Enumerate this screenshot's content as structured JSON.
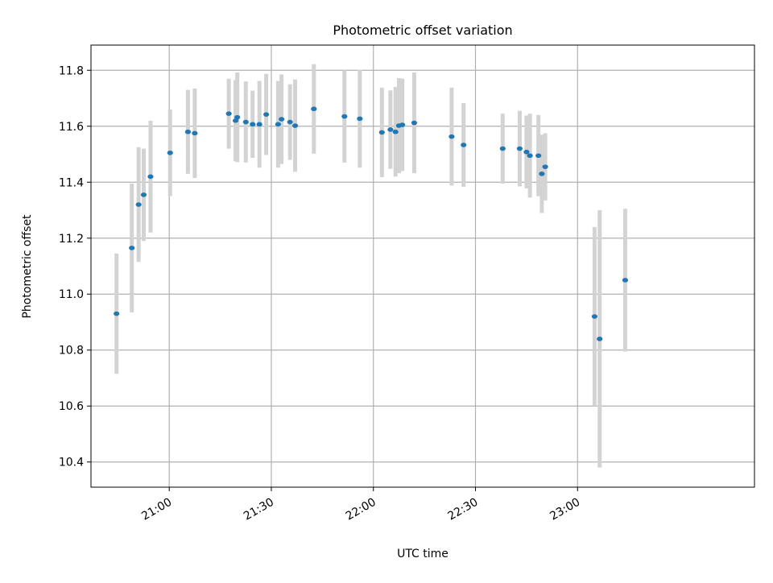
{
  "chart_data": {
    "type": "scatter",
    "title": "Photometric offset variation",
    "xlabel": "UTC time",
    "ylabel": "Photometric offset",
    "x_unit": "UTC time (HH:MM)",
    "xlim": [
      "20:37",
      "23:52"
    ],
    "ylim": [
      10.31,
      11.89
    ],
    "x_ticks": [
      "21:00",
      "21:30",
      "22:00",
      "22:30",
      "23:00"
    ],
    "y_ticks": [
      10.4,
      10.6,
      10.8,
      11.0,
      11.2,
      11.4,
      11.6,
      11.8
    ],
    "grid": true,
    "legend": "none",
    "colors": {
      "point": "#1f77b4",
      "errorbar": "#d3d3d3",
      "grid": "#b0b0b0"
    },
    "points": [
      {
        "t": "20:44:30",
        "y": 10.93,
        "yerr": 0.215
      },
      {
        "t": "20:49:00",
        "y": 11.165,
        "yerr": 0.23
      },
      {
        "t": "20:51:00",
        "y": 11.32,
        "yerr": 0.205
      },
      {
        "t": "20:52:30",
        "y": 11.355,
        "yerr": 0.165
      },
      {
        "t": "20:54:30",
        "y": 11.42,
        "yerr": 0.2
      },
      {
        "t": "21:00:15",
        "y": 11.505,
        "yerr": 0.155
      },
      {
        "t": "21:05:30",
        "y": 11.58,
        "yerr": 0.15
      },
      {
        "t": "21:07:30",
        "y": 11.575,
        "yerr": 0.16
      },
      {
        "t": "21:17:30",
        "y": 11.645,
        "yerr": 0.125
      },
      {
        "t": "21:19:30",
        "y": 11.62,
        "yerr": 0.145
      },
      {
        "t": "21:20:00",
        "y": 11.632,
        "yerr": 0.16
      },
      {
        "t": "21:22:30",
        "y": 11.615,
        "yerr": 0.145
      },
      {
        "t": "21:24:30",
        "y": 11.607,
        "yerr": 0.12
      },
      {
        "t": "21:26:30",
        "y": 11.607,
        "yerr": 0.155
      },
      {
        "t": "21:28:30",
        "y": 11.642,
        "yerr": 0.145
      },
      {
        "t": "21:32:00",
        "y": 11.607,
        "yerr": 0.155
      },
      {
        "t": "21:33:00",
        "y": 11.625,
        "yerr": 0.16
      },
      {
        "t": "21:35:30",
        "y": 11.615,
        "yerr": 0.135
      },
      {
        "t": "21:37:00",
        "y": 11.602,
        "yerr": 0.165
      },
      {
        "t": "21:42:30",
        "y": 11.662,
        "yerr": 0.16
      },
      {
        "t": "21:51:30",
        "y": 11.635,
        "yerr": 0.165
      },
      {
        "t": "21:56:00",
        "y": 11.627,
        "yerr": 0.175
      },
      {
        "t": "22:02:30",
        "y": 11.578,
        "yerr": 0.16
      },
      {
        "t": "22:05:00",
        "y": 11.588,
        "yerr": 0.14
      },
      {
        "t": "22:06:30",
        "y": 11.58,
        "yerr": 0.16
      },
      {
        "t": "22:07:30",
        "y": 11.602,
        "yerr": 0.17
      },
      {
        "t": "22:08:30",
        "y": 11.605,
        "yerr": 0.165
      },
      {
        "t": "22:12:00",
        "y": 11.612,
        "yerr": 0.18
      },
      {
        "t": "22:23:00",
        "y": 11.563,
        "yerr": 0.175
      },
      {
        "t": "22:26:30",
        "y": 11.533,
        "yerr": 0.15
      },
      {
        "t": "22:38:00",
        "y": 11.52,
        "yerr": 0.125
      },
      {
        "t": "22:43:00",
        "y": 11.52,
        "yerr": 0.135
      },
      {
        "t": "22:45:00",
        "y": 11.508,
        "yerr": 0.13
      },
      {
        "t": "22:46:00",
        "y": 11.495,
        "yerr": 0.15
      },
      {
        "t": "22:48:30",
        "y": 11.495,
        "yerr": 0.145
      },
      {
        "t": "22:49:30",
        "y": 11.43,
        "yerr": 0.14
      },
      {
        "t": "22:50:30",
        "y": 11.455,
        "yerr": 0.12
      },
      {
        "t": "23:05:00",
        "y": 10.92,
        "yerr": 0.32
      },
      {
        "t": "23:06:30",
        "y": 10.84,
        "yerr": 0.46
      },
      {
        "t": "23:14:00",
        "y": 11.05,
        "yerr": 0.255
      }
    ]
  }
}
